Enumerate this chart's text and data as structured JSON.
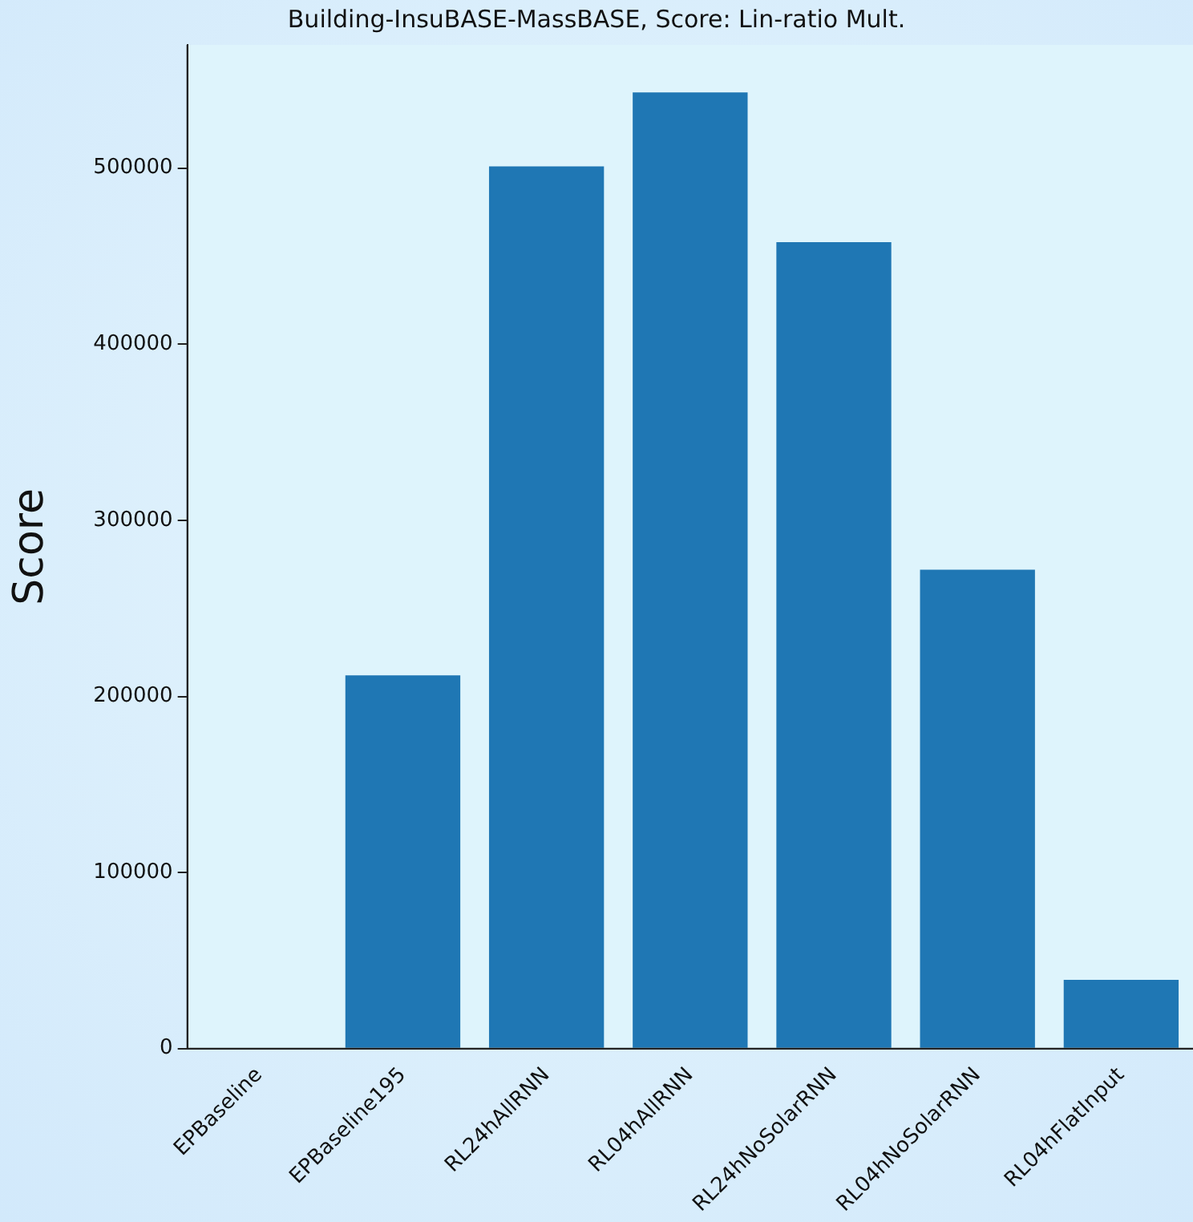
{
  "chart_data": {
    "type": "bar",
    "title": "Building-InsuBASE-MassBASE, Score: Lin-ratio Mult.",
    "ylabel": "Score",
    "categories": [
      "EPBaseline",
      "EPBaseline195",
      "RL24hAllRNN",
      "RL04hAllRNN",
      "RL24hNoSolarRNN",
      "RL04hNoSolarRNN",
      "RL04hFlatInput"
    ],
    "values": [
      0,
      212000,
      501000,
      543000,
      458000,
      272000,
      39000
    ],
    "color": "#1f77b4",
    "ylim": [
      0,
      570000
    ],
    "yticks": [
      0,
      100000,
      200000,
      300000,
      400000,
      500000
    ],
    "grid": false,
    "legend": false
  }
}
